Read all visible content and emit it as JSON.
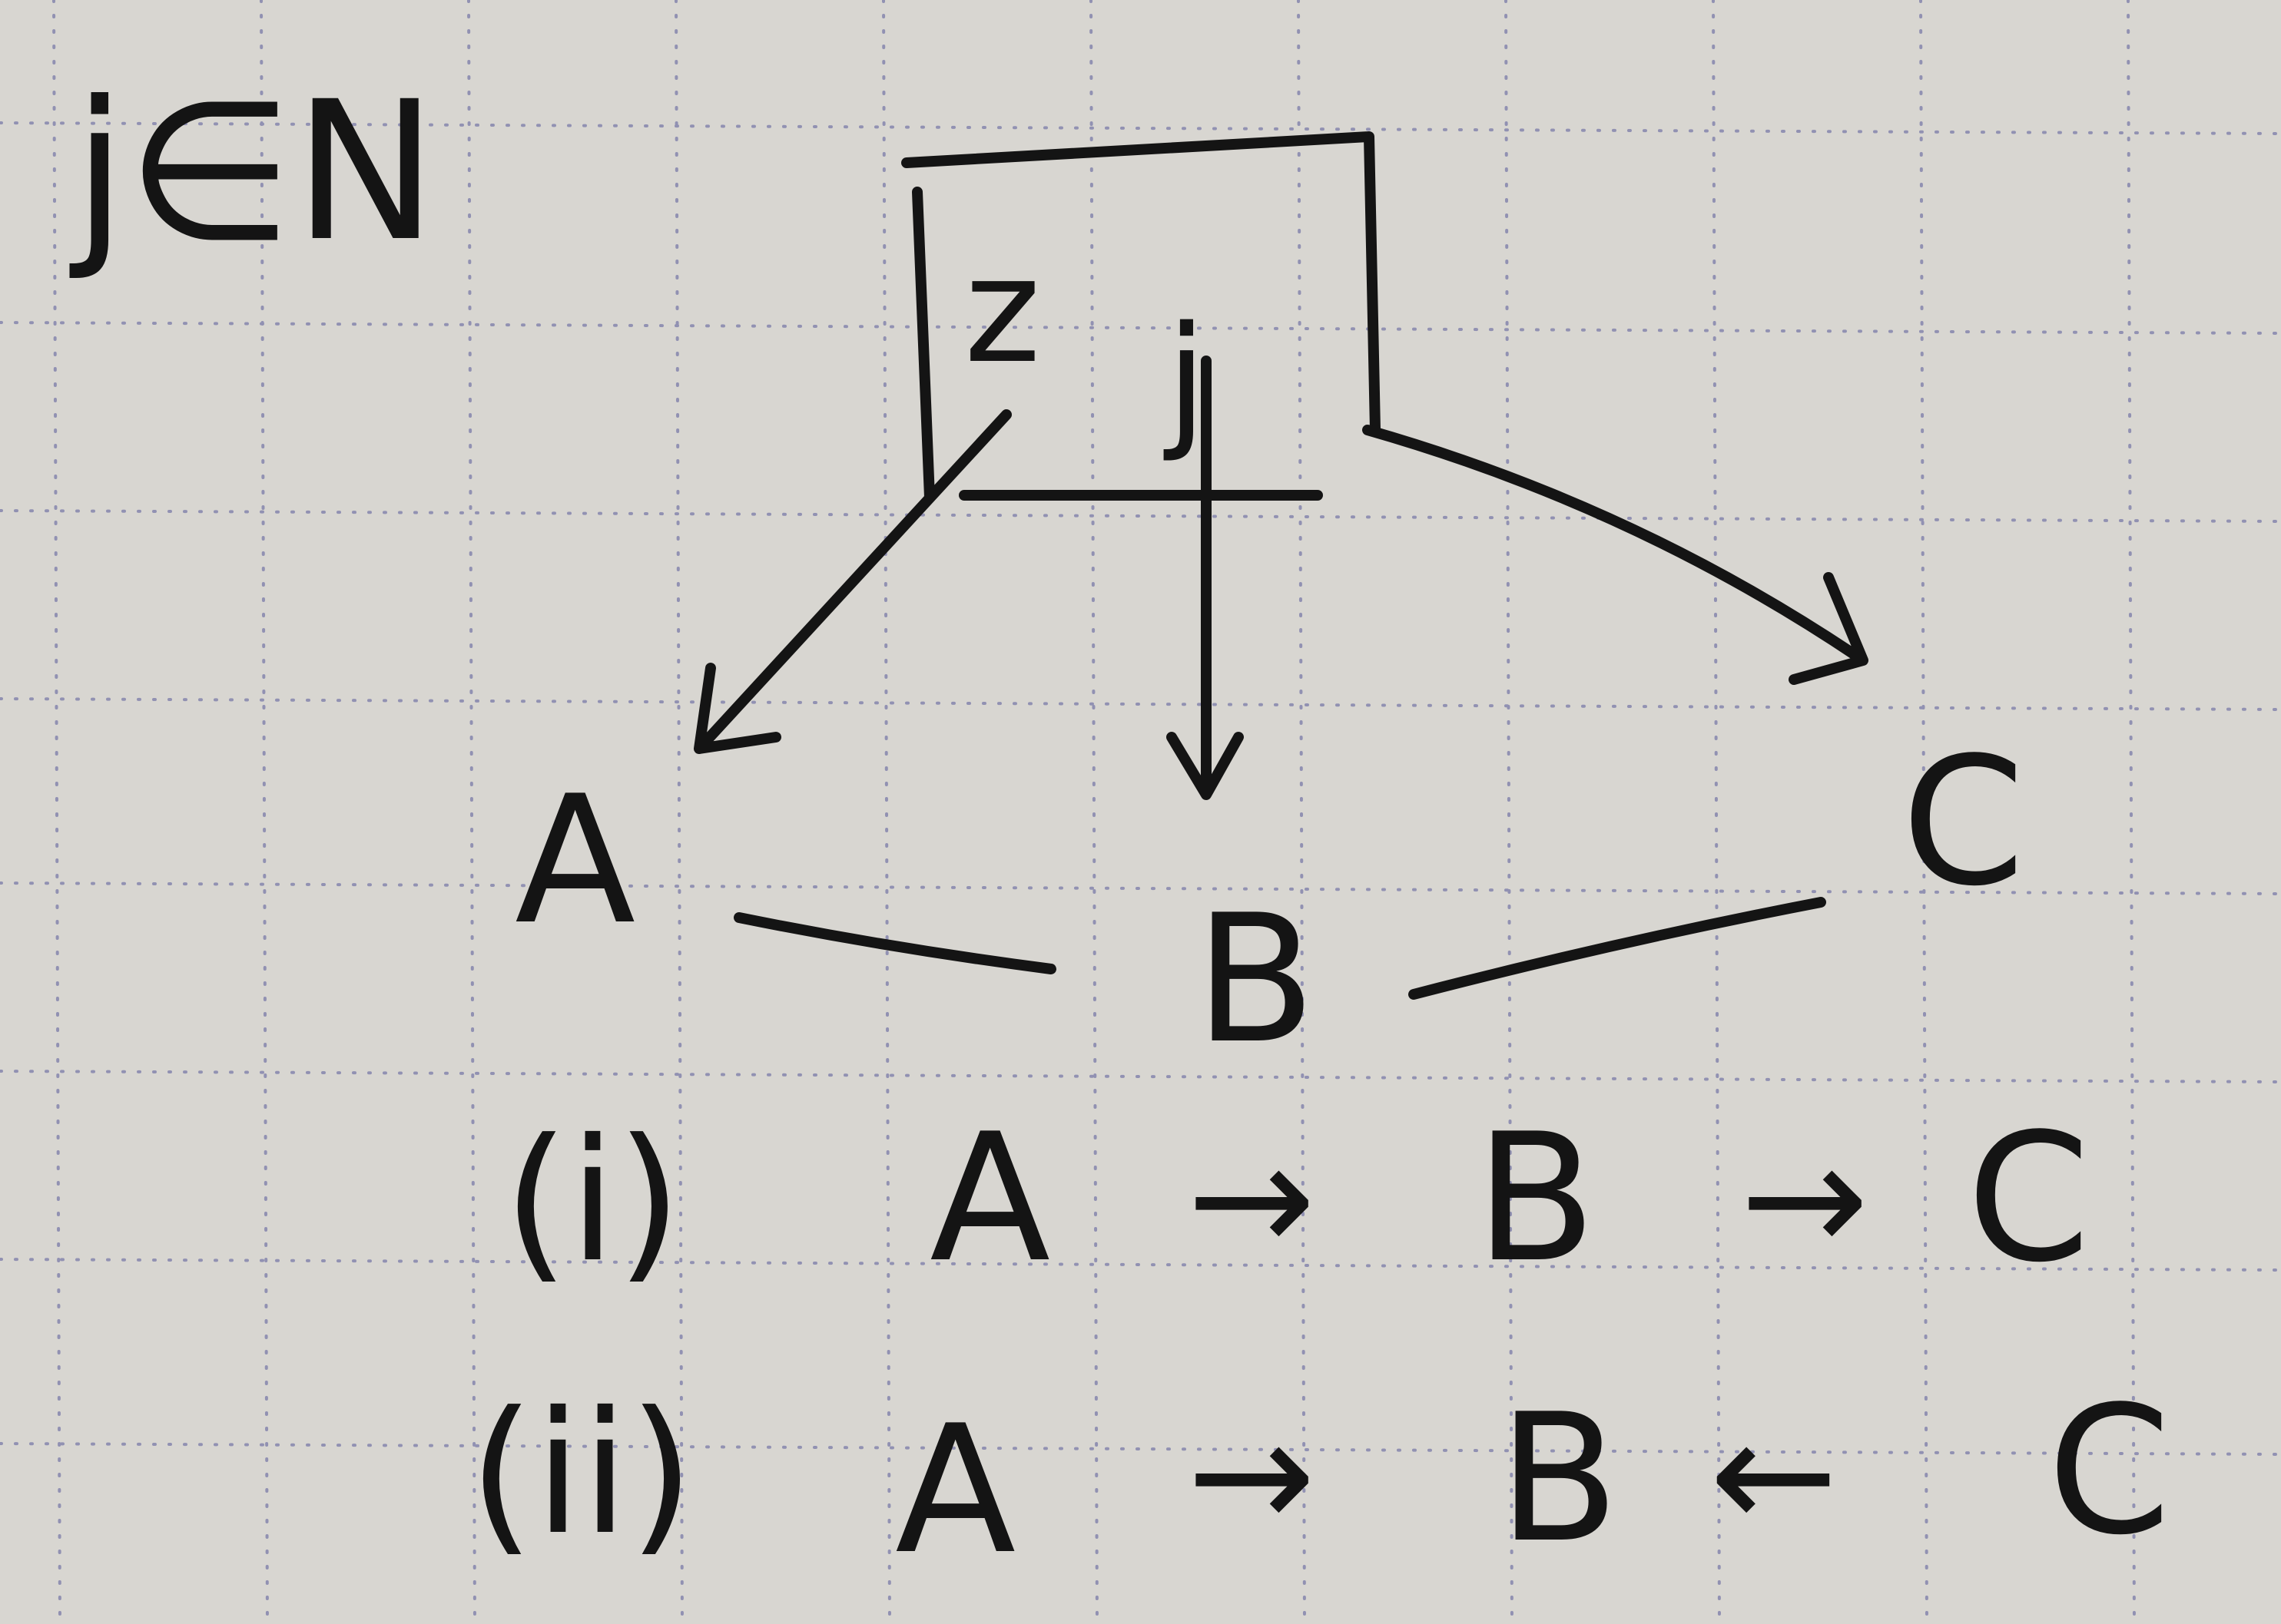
{
  "header": {
    "label": "j∈N"
  },
  "top_box": {
    "left_var": "z",
    "right_var": "j"
  },
  "nodes": {
    "a": "A",
    "b": "B",
    "c": "C"
  },
  "cases": [
    {
      "marker": "(i)",
      "left": "A",
      "middle": "B",
      "right": "C",
      "arrow_right": "→",
      "arrow_between": "→"
    },
    {
      "marker": "(ii)",
      "left": "A",
      "middle": "B",
      "right": "C",
      "arrow_right": "→",
      "arrow_between": "←"
    }
  ],
  "colors": {
    "paper": "#d8d6d1",
    "ink": "#141414",
    "grid": "#7a7aa8"
  }
}
